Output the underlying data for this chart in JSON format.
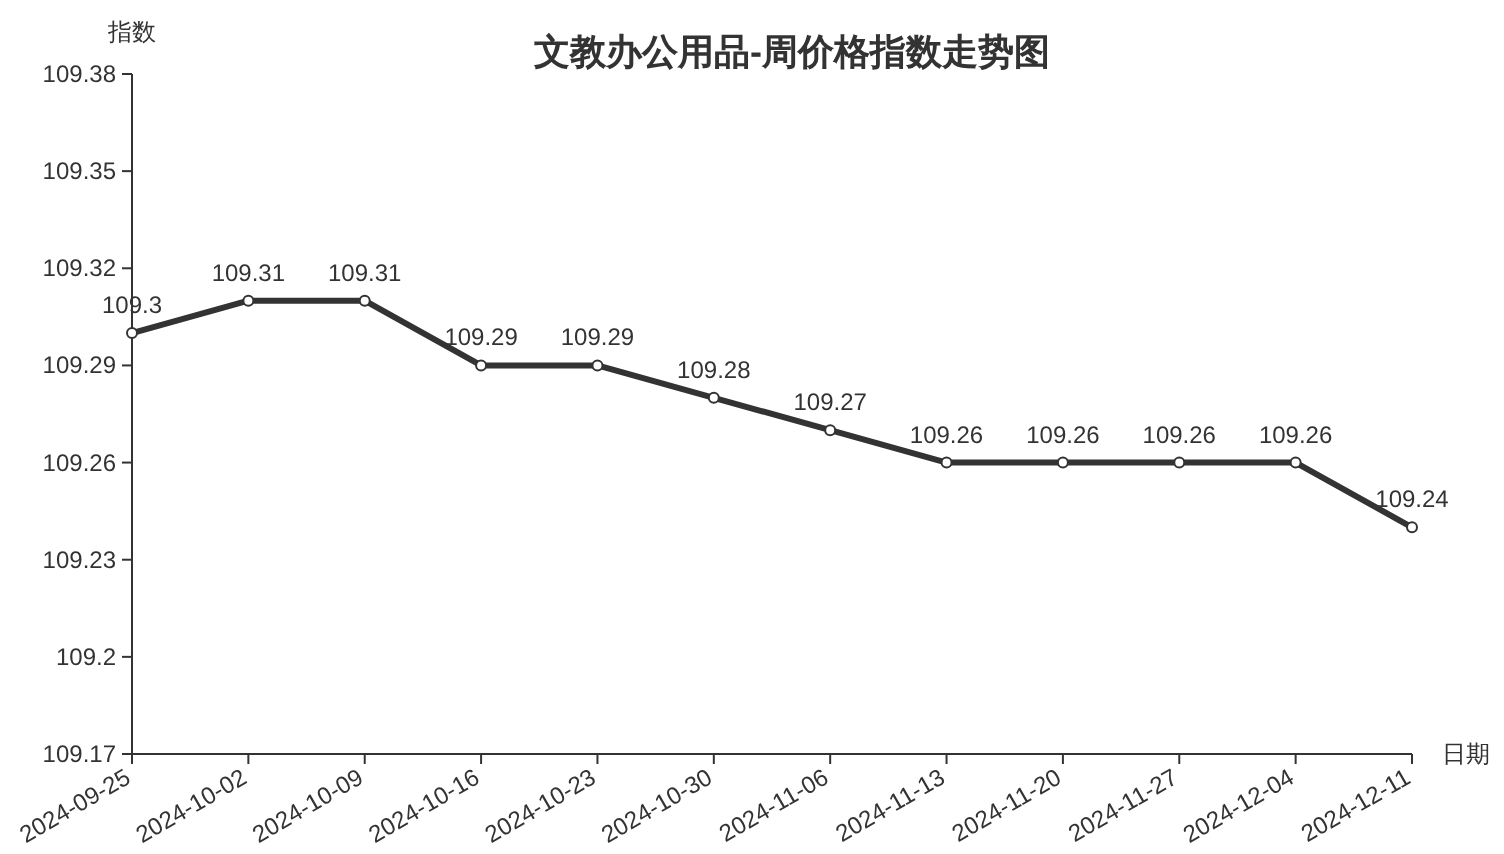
{
  "chart_data": {
    "type": "line",
    "title": "文教办公用品-周价格指数走势图",
    "xlabel": "日期",
    "ylabel": "指数",
    "categories": [
      "2024-09-25",
      "2024-10-02",
      "2024-10-09",
      "2024-10-16",
      "2024-10-23",
      "2024-10-30",
      "2024-11-06",
      "2024-11-13",
      "2024-11-20",
      "2024-11-27",
      "2024-12-04",
      "2024-12-11"
    ],
    "series": [
      {
        "color": "#333333",
        "values": [
          109.3,
          109.31,
          109.31,
          109.29,
          109.29,
          109.28,
          109.27,
          109.26,
          109.26,
          109.26,
          109.26,
          109.24
        ]
      }
    ],
    "ylim": [
      109.17,
      109.38
    ],
    "yticks": [
      109.17,
      109.2,
      109.23,
      109.26,
      109.29,
      109.32,
      109.35,
      109.38
    ],
    "data_labels": true,
    "marker": "circle",
    "grid": false
  }
}
